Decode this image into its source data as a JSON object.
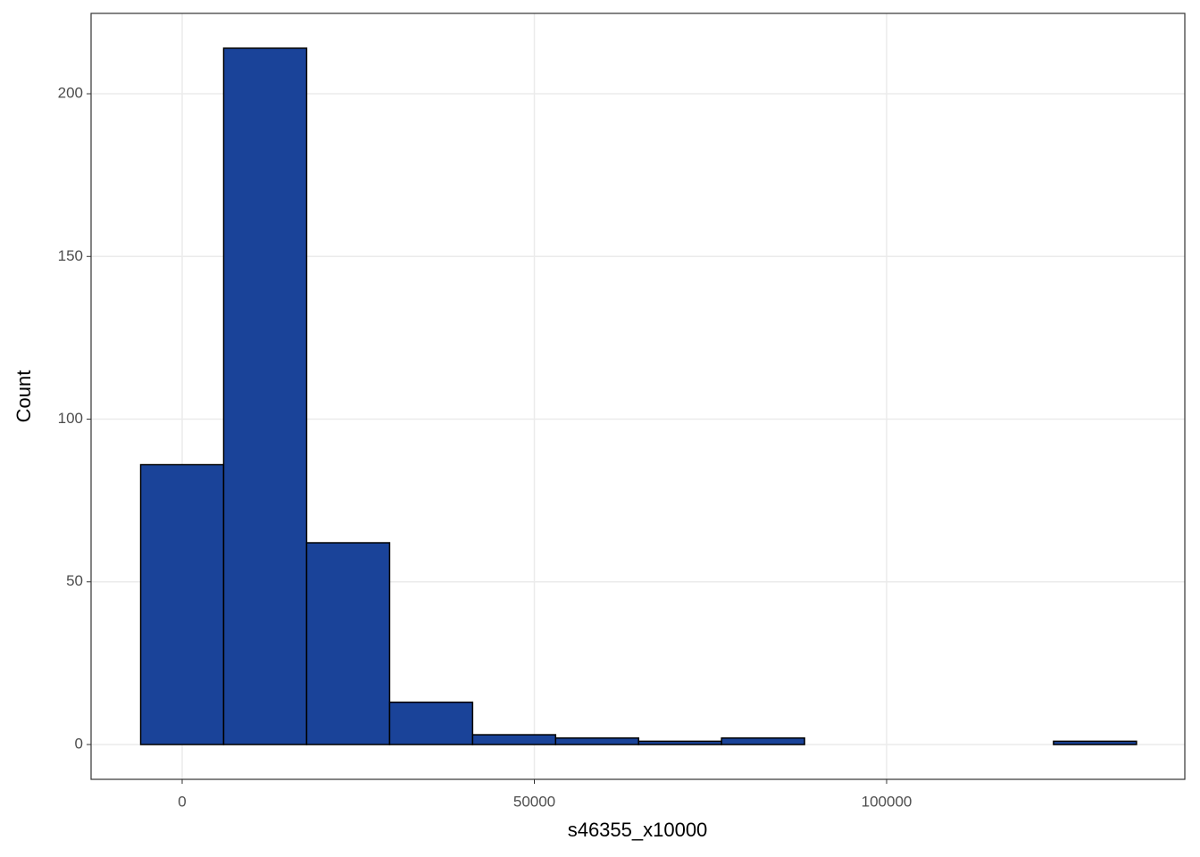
{
  "chart_data": {
    "type": "histogram",
    "x_label": "s46355_x10000",
    "y_label": "Count",
    "bins": [
      -5890,
      5890,
      17670,
      29450,
      41230,
      53010,
      64790,
      76570,
      88350,
      100130,
      111910,
      123690,
      135470
    ],
    "values": [
      86,
      214,
      62,
      13,
      3,
      2,
      1,
      2,
      0,
      0,
      0,
      1
    ],
    "color": "#1a4399",
    "edge_color": "#000000",
    "xlim": [
      -12929,
      142330
    ],
    "ylim": [
      -10.7,
      224.7
    ],
    "xticks": [
      0,
      50000,
      100000
    ],
    "yticks": [
      0,
      50,
      100,
      150,
      200
    ],
    "grid": true
  }
}
